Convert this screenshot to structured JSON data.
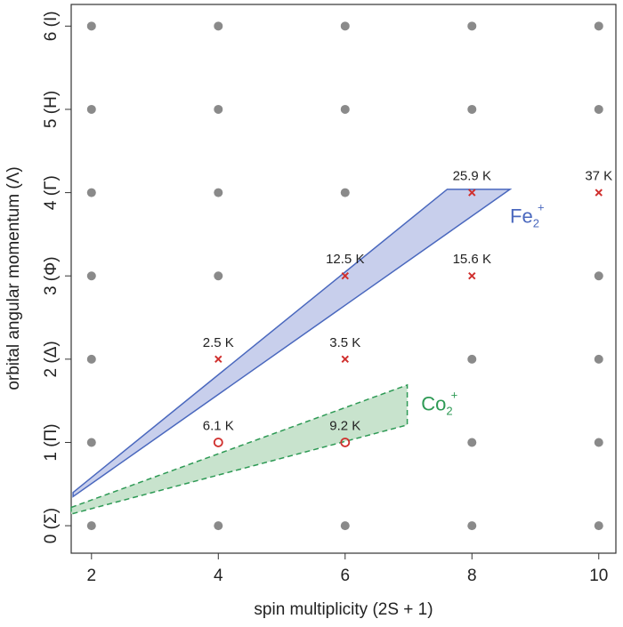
{
  "chart_data": {
    "type": "scatter",
    "xlabel": "spin multiplicity (2S + 1)",
    "ylabel": "orbital angular momentum (Λ)",
    "xlim": [
      1.68,
      10.27
    ],
    "ylim": [
      -0.33,
      6.26
    ],
    "xticks": [
      2,
      4,
      6,
      8,
      10
    ],
    "yticks": [
      {
        "value": 0,
        "label": "0 (Σ)"
      },
      {
        "value": 1,
        "label": "1 (Π)"
      },
      {
        "value": 2,
        "label": "2 (Δ)"
      },
      {
        "value": 3,
        "label": "3 (Φ)"
      },
      {
        "value": 4,
        "label": "4 (Γ)"
      },
      {
        "value": 5,
        "label": "5 (H)"
      },
      {
        "value": 6,
        "label": "6 (I)"
      }
    ],
    "series": [
      {
        "type": "region",
        "color": "#4a68be",
        "fill": "#c8cfec",
        "dashed": false,
        "x": [
          1.71,
          7.61,
          8.6,
          1.71
        ],
        "y": [
          0.4,
          4.04,
          4.04,
          0.35
        ]
      },
      {
        "type": "region",
        "color": "#2e9a55",
        "fill": "#c8e3cd",
        "dashed": true,
        "x": [
          1.68,
          6.98,
          6.98,
          1.68
        ],
        "y": [
          0.22,
          1.69,
          1.21,
          0.14
        ]
      },
      {
        "type": "dot",
        "color": "#8a8a8a",
        "x": [
          2,
          4,
          6,
          8,
          10,
          2,
          8,
          10,
          2,
          8,
          10,
          2,
          4,
          10,
          2,
          4,
          6,
          2,
          4,
          6,
          8,
          10,
          2,
          4,
          6,
          8,
          10
        ],
        "y": [
          0,
          0,
          0,
          0,
          0,
          1,
          1,
          1,
          2,
          2,
          2,
          3,
          3,
          3,
          4,
          4,
          4,
          5,
          5,
          5,
          5,
          5,
          6,
          6,
          6,
          6,
          6
        ]
      },
      {
        "type": "cross",
        "color": "#d0302e",
        "x": [
          4,
          6,
          6,
          8,
          8,
          10
        ],
        "y": [
          2,
          2,
          3,
          3,
          4,
          4
        ],
        "labels": [
          "2.5 K",
          "3.5 K",
          "12.5 K",
          "15.6 K",
          "25.9 K",
          "37 K"
        ]
      },
      {
        "type": "circle",
        "color": "#d0302e",
        "x": [
          4,
          6
        ],
        "y": [
          1,
          1
        ],
        "labels": [
          "6.1 K",
          "9.2 K"
        ]
      }
    ],
    "annotations": [
      {
        "text": "Fe",
        "sub": "2",
        "sup": "+",
        "color": "#4a68be",
        "x": 8.6,
        "y": 3.7
      },
      {
        "text": "Co",
        "sub": "2",
        "sup": "+",
        "color": "#2e9a55",
        "x": 7.2,
        "y": 1.45
      }
    ]
  }
}
